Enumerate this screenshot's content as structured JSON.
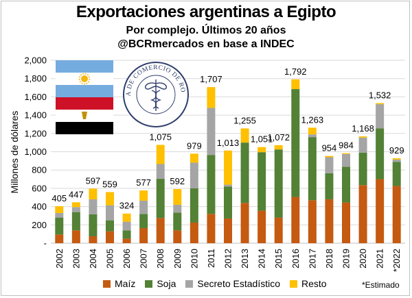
{
  "title": "Exportaciones argentinas a Egipto",
  "subtitle": "Por complejo. Últimos 20 años",
  "source": "@BCRmercados en base a INDEC",
  "note": "*Estimado",
  "logo_text": "BOLSA DE COMERCIO DE ROSARIO",
  "colors": {
    "maiz": "#c55a11",
    "soja": "#538135",
    "secreto": "#a5a5a5",
    "resto": "#ffc000",
    "flag_ar_blue": "#74acdf",
    "flag_eg_red": "#ce1126",
    "flag_eg_black": "#000000",
    "grid": "#d9d9d9",
    "logo_navy": "#2f3d6b"
  },
  "chart_data": {
    "type": "bar",
    "stacked": true,
    "ylabel": "Millones de dólares",
    "ylim": [
      0,
      2000
    ],
    "yticks": [
      "-",
      "200",
      "400",
      "600",
      "800",
      "1,000",
      "1,200",
      "1,400",
      "1,600",
      "1,800",
      "2,000"
    ],
    "grid": true,
    "categories": [
      "2002",
      "2003",
      "2004",
      "2005",
      "2006",
      "2007",
      "2008",
      "2009",
      "2010",
      "2011",
      "2012",
      "2013",
      "2014",
      "2015",
      "2016",
      "2017",
      "2018",
      "2019",
      "2020",
      "2021",
      "*2022"
    ],
    "totals": [
      405,
      447,
      597,
      559,
      324,
      577,
      1075,
      592,
      979,
      1707,
      1013,
      1255,
      1051,
      1072,
      1792,
      1263,
      954,
      984,
      1168,
      1532,
      929
    ],
    "total_labels": [
      "405",
      "447",
      "597",
      "559",
      "324",
      "577",
      "1,075",
      "592",
      "979",
      "1,707",
      "1,013",
      "1,255",
      "1,051",
      "1,072",
      "1,792",
      "1,263",
      "954",
      "984",
      "1,168",
      "1,532",
      "929"
    ],
    "series": [
      {
        "name": "Maíz",
        "color_key": "maiz",
        "values": [
          95,
          140,
          75,
          130,
          50,
          165,
          275,
          140,
          225,
          320,
          270,
          440,
          355,
          280,
          505,
          470,
          480,
          445,
          635,
          700,
          625
        ]
      },
      {
        "name": "Soja",
        "color_key": "soja",
        "values": [
          185,
          200,
          240,
          120,
          90,
          155,
          430,
          195,
          375,
          645,
          350,
          660,
          640,
          745,
          1180,
          690,
          285,
          390,
          355,
          555,
          265
        ]
      },
      {
        "name": "Secreto Estadístico",
        "color_key": "secreto",
        "values": [
          50,
          55,
          165,
          165,
          95,
          145,
          160,
          85,
          280,
          515,
          20,
          0,
          0,
          0,
          0,
          30,
          175,
          140,
          165,
          265,
          25
        ]
      },
      {
        "name": "Resto",
        "color_key": "resto",
        "values": [
          75,
          52,
          117,
          144,
          89,
          112,
          210,
          172,
          99,
          227,
          373,
          155,
          56,
          47,
          107,
          73,
          14,
          9,
          13,
          12,
          14
        ]
      }
    ]
  }
}
